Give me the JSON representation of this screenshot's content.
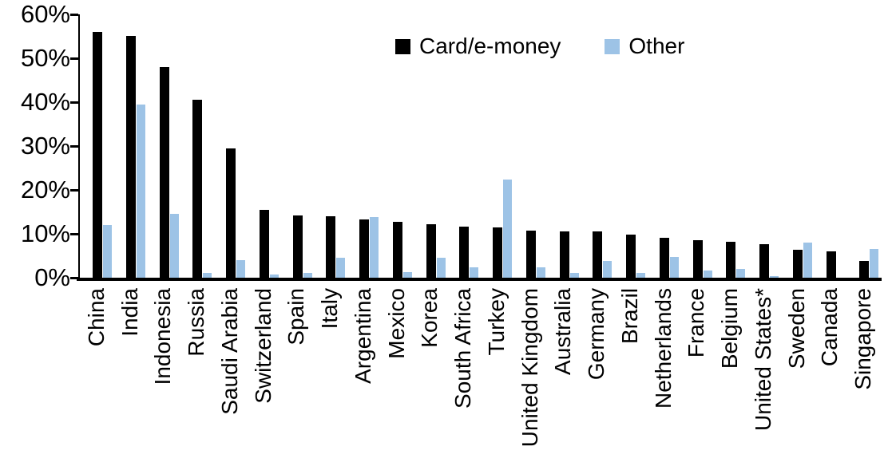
{
  "chart_data": {
    "type": "bar",
    "title": "",
    "xlabel": "",
    "ylabel": "",
    "ylim": [
      0,
      60
    ],
    "grid": false,
    "legend_position": "top-center",
    "categories": [
      "China",
      "India",
      "Indonesia",
      "Russia",
      "Saudi Arabia",
      "Switzerland",
      "Spain",
      "Italy",
      "Argentina",
      "Mexico",
      "Korea",
      "South Africa",
      "Turkey",
      "United Kingdom",
      "Australia",
      "Germany",
      "Brazil",
      "Netherlands",
      "France",
      "Belgium",
      "United States*",
      "Sweden",
      "Canada",
      "Singapore"
    ],
    "series": [
      {
        "name": "Card/e-money",
        "color": "#000000",
        "values": [
          56.0,
          55.0,
          48.0,
          40.5,
          29.5,
          15.5,
          14.2,
          14.0,
          13.3,
          12.8,
          12.1,
          11.7,
          11.5,
          10.8,
          10.6,
          10.5,
          9.8,
          9.1,
          8.5,
          8.1,
          7.7,
          6.4,
          6.0,
          3.8
        ]
      },
      {
        "name": "Other",
        "color": "#9DC3E6",
        "values": [
          12.0,
          39.5,
          14.5,
          1.0,
          4.0,
          0.8,
          1.0,
          4.6,
          13.9,
          1.3,
          4.5,
          2.3,
          22.4,
          2.3,
          1.0,
          3.9,
          1.1,
          4.7,
          1.6,
          2.0,
          0.3,
          8.0,
          0.0,
          6.5
        ]
      }
    ],
    "y_ticks": [
      {
        "value": 0,
        "label": "0%"
      },
      {
        "value": 10,
        "label": "10%"
      },
      {
        "value": 20,
        "label": "20%"
      },
      {
        "value": 30,
        "label": "30%"
      },
      {
        "value": 40,
        "label": "40%"
      },
      {
        "value": 50,
        "label": "50%"
      },
      {
        "value": 60,
        "label": "60%"
      }
    ]
  }
}
